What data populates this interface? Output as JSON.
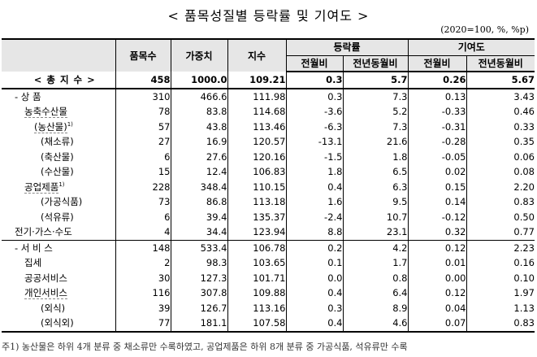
{
  "title": "< 품목성질별 등락률 및 기여도 >",
  "units": "(2020=100, %, %p)",
  "headers": {
    "item": "",
    "count": "품목수",
    "weight": "가중치",
    "index": "지수",
    "change_group": "등락률",
    "contrib_group": "기여도",
    "mom": "전월비",
    "yoy": "전년동월비"
  },
  "rows": [
    {
      "label": "< 총 지 수 >",
      "sup": "",
      "count": "458",
      "weight": "1000.0",
      "index": "109.21",
      "chg_mom": "0.3",
      "chg_yoy": "5.7",
      "con_mom": "0.26",
      "con_yoy": "5.67"
    },
    {
      "label": "- 상       품",
      "sup": "",
      "count": "310",
      "weight": "466.6",
      "index": "111.98",
      "chg_mom": "0.3",
      "chg_yoy": "7.3",
      "con_mom": "0.13",
      "con_yoy": "3.43"
    },
    {
      "label": "농축수산물",
      "sup": "",
      "count": "78",
      "weight": "83.8",
      "index": "114.68",
      "chg_mom": "-3.6",
      "chg_yoy": "5.2",
      "con_mom": "-0.33",
      "con_yoy": "0.46"
    },
    {
      "label": "(농산물)",
      "sup": "1)",
      "count": "57",
      "weight": "43.8",
      "index": "113.46",
      "chg_mom": "-6.3",
      "chg_yoy": "7.3",
      "con_mom": "-0.31",
      "con_yoy": "0.33"
    },
    {
      "label": "(채소류)",
      "sup": "",
      "count": "27",
      "weight": "16.9",
      "index": "120.57",
      "chg_mom": "-13.1",
      "chg_yoy": "21.6",
      "con_mom": "-0.28",
      "con_yoy": "0.35"
    },
    {
      "label": "(축산물)",
      "sup": "",
      "count": "6",
      "weight": "27.6",
      "index": "120.16",
      "chg_mom": "-1.5",
      "chg_yoy": "1.8",
      "con_mom": "-0.05",
      "con_yoy": "0.06"
    },
    {
      "label": "(수산물)",
      "sup": "",
      "count": "15",
      "weight": "12.4",
      "index": "106.83",
      "chg_mom": "1.8",
      "chg_yoy": "6.5",
      "con_mom": "0.02",
      "con_yoy": "0.08"
    },
    {
      "label": "공업제품",
      "sup": "1)",
      "count": "228",
      "weight": "348.4",
      "index": "110.15",
      "chg_mom": "0.4",
      "chg_yoy": "6.3",
      "con_mom": "0.15",
      "con_yoy": "2.20"
    },
    {
      "label": "(가공식품)",
      "sup": "",
      "count": "73",
      "weight": "86.8",
      "index": "113.18",
      "chg_mom": "1.6",
      "chg_yoy": "9.5",
      "con_mom": "0.14",
      "con_yoy": "0.83"
    },
    {
      "label": "(석유류)",
      "sup": "",
      "count": "6",
      "weight": "39.4",
      "index": "135.37",
      "chg_mom": "-2.4",
      "chg_yoy": "10.7",
      "con_mom": "-0.12",
      "con_yoy": "0.50"
    },
    {
      "label": "전기·가스·수도",
      "sup": "",
      "count": "4",
      "weight": "34.4",
      "index": "123.94",
      "chg_mom": "8.8",
      "chg_yoy": "23.1",
      "con_mom": "0.32",
      "con_yoy": "0.77"
    },
    {
      "label": "- 서  비  스",
      "sup": "",
      "count": "148",
      "weight": "533.4",
      "index": "106.78",
      "chg_mom": "0.2",
      "chg_yoy": "4.2",
      "con_mom": "0.12",
      "con_yoy": "2.23"
    },
    {
      "label": "집세",
      "sup": "",
      "count": "2",
      "weight": "98.3",
      "index": "103.65",
      "chg_mom": "0.1",
      "chg_yoy": "1.7",
      "con_mom": "0.01",
      "con_yoy": "0.16"
    },
    {
      "label": "공공서비스",
      "sup": "",
      "count": "30",
      "weight": "127.3",
      "index": "101.71",
      "chg_mom": "0.0",
      "chg_yoy": "0.8",
      "con_mom": "0.00",
      "con_yoy": "0.10"
    },
    {
      "label": "개인서비스",
      "sup": "",
      "count": "116",
      "weight": "307.8",
      "index": "109.88",
      "chg_mom": "0.4",
      "chg_yoy": "6.4",
      "con_mom": "0.12",
      "con_yoy": "1.97"
    },
    {
      "label": "(외식)",
      "sup": "",
      "count": "39",
      "weight": "126.7",
      "index": "113.16",
      "chg_mom": "0.3",
      "chg_yoy": "8.9",
      "con_mom": "0.04",
      "con_yoy": "1.13"
    },
    {
      "label": "(외식외)",
      "sup": "",
      "count": "77",
      "weight": "181.1",
      "index": "107.58",
      "chg_mom": "0.4",
      "chg_yoy": "4.6",
      "con_mom": "0.07",
      "con_yoy": "0.83"
    }
  ],
  "footnote": "주1) 농산물은 하위 4개 분류 중 채소류만 수록하였고, 공업제품은 하위 8개 분류 중 가공식품, 석유류만 수록"
}
